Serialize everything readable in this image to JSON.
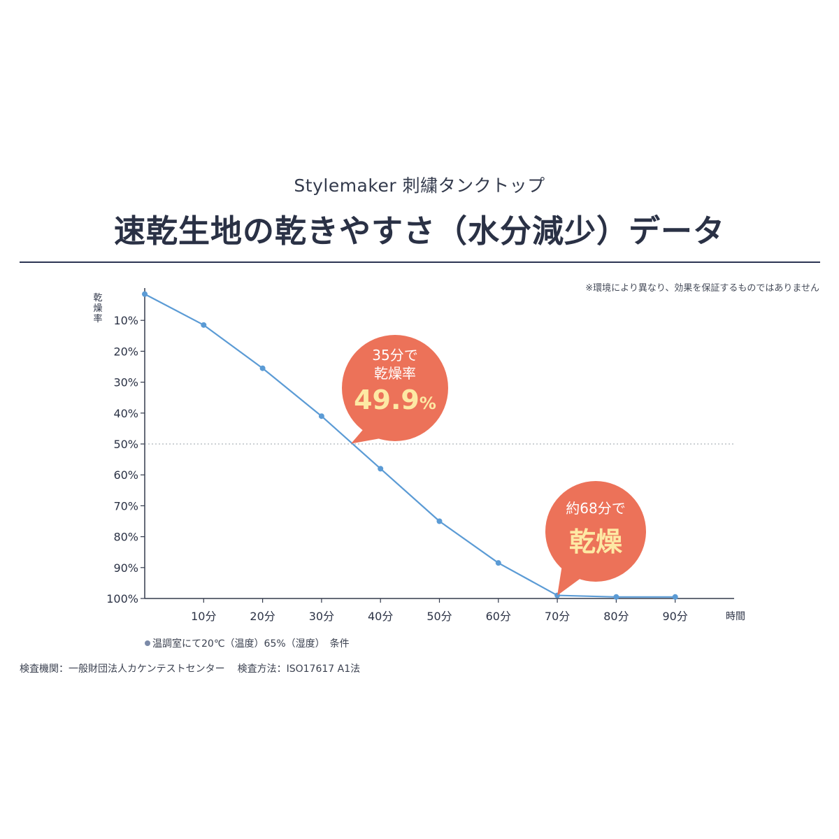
{
  "header": {
    "subtitle": "Stylemaker 刺繍タンクトップ",
    "title": "速乾生地の乾きやすさ（水分減少）データ",
    "disclaimer": "※環境により異なり、効果を保証するものではありません"
  },
  "chart_data": {
    "type": "line",
    "ylabel": "乾燥率",
    "xlabel": "時間",
    "x_categories": [
      "10分",
      "20分",
      "30分",
      "40分",
      "50分",
      "60分",
      "70分",
      "80分",
      "90分"
    ],
    "y_tick_labels": [
      "10%",
      "20%",
      "30%",
      "40%",
      "50%",
      "60%",
      "70%",
      "80%",
      "90%",
      "100%"
    ],
    "ylim": [
      0,
      100
    ],
    "y_inverted": true,
    "xlim": [
      0,
      100
    ],
    "reference_line": {
      "y": 50,
      "style": "dotted"
    },
    "series": [
      {
        "x": [
          0,
          10,
          20,
          30,
          40,
          50,
          60,
          70,
          80,
          90
        ],
        "y": [
          1.5,
          11.5,
          25.5,
          41,
          58,
          75,
          88.5,
          99,
          99.5,
          99.5
        ],
        "color": "#5b9bd5"
      }
    ],
    "callouts": [
      {
        "lines": [
          "35分で",
          "乾燥率"
        ],
        "highlight": "49.9%",
        "highlight_main": "49.9",
        "highlight_unit": "%",
        "x": 35,
        "y": 49.9
      },
      {
        "lines": [
          "約68分で"
        ],
        "highlight": "乾燥",
        "x": 70,
        "y": 99
      }
    ]
  },
  "footer": {
    "condition": "温調室にて20℃（温度）65%（湿度）　条件",
    "inspection_org": "検査機関：一般財団法人カケンテストセンター",
    "inspection_method": "検査方法：ISO17617 A1法"
  },
  "colors": {
    "line": "#5b9bd5",
    "callout": "#ec7259",
    "highlight_text": "#fde9a4",
    "axis": "#333a4c"
  }
}
